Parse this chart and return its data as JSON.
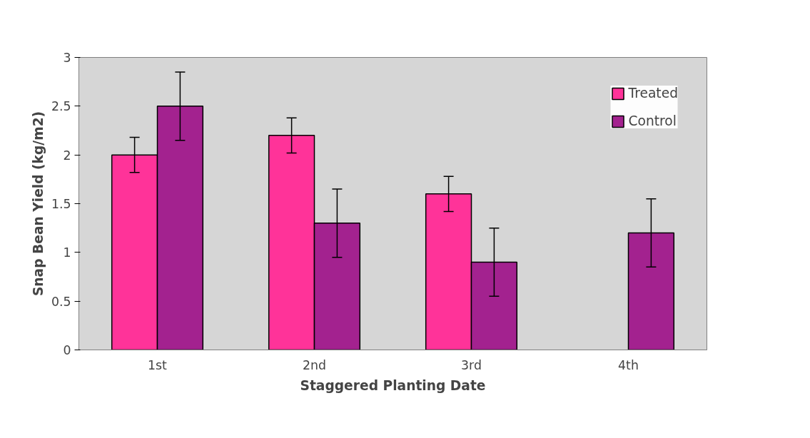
{
  "chart_data": {
    "type": "bar",
    "xlabel": "Staggered Planting Date",
    "ylabel": "Snap Bean Yield (kg/m2)",
    "categories": [
      "1st",
      "2nd",
      "3rd",
      "4th"
    ],
    "series": [
      {
        "name": "Treated",
        "color": "#ff3399",
        "values": [
          2.0,
          2.2,
          1.6,
          null
        ],
        "errors": [
          0.18,
          0.18,
          0.18,
          null
        ]
      },
      {
        "name": "Control",
        "color": "#a3228f",
        "values": [
          2.5,
          1.3,
          0.9,
          1.2
        ],
        "errors": [
          0.35,
          0.35,
          0.35,
          0.35
        ]
      }
    ],
    "ylim": [
      0,
      3
    ],
    "yticks": [
      0,
      0.5,
      1,
      1.5,
      2,
      2.5,
      3
    ],
    "grid": false,
    "legend": "top right"
  }
}
